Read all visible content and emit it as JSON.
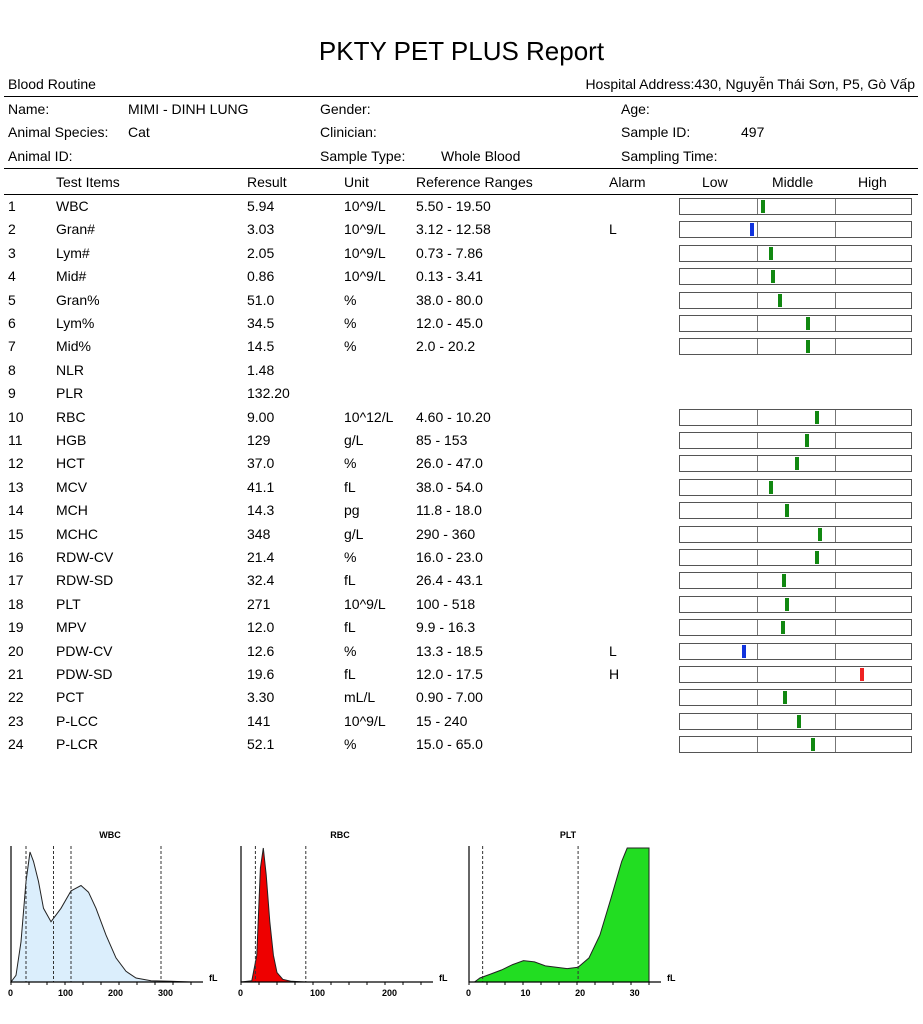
{
  "report": {
    "title": "PKTY PET PLUS Report",
    "section": "Blood Routine",
    "hospital": "Hospital Address:430, Nguyễn Thái Sơn, P5, Gò Vấp"
  },
  "patient": {
    "name_label": "Name:",
    "name_value": "MIMI - DINH LUNG",
    "gender_label": "Gender:",
    "gender_value": "",
    "age_label": "Age:",
    "age_value": "",
    "species_label": "Animal Species:",
    "species_value": "Cat",
    "clinician_label": "Clinician:",
    "clinician_value": "",
    "sample_id_label": "Sample ID:",
    "sample_id_value": "497",
    "animal_id_label": "Animal ID:",
    "animal_id_value": "",
    "sample_type_label": "Sample Type:",
    "sample_type_value": "Whole Blood",
    "sampling_time_label": "Sampling Time:",
    "sampling_time_value": ""
  },
  "table": {
    "headers": {
      "test_items": "Test Items",
      "result": "Result",
      "unit": "Unit",
      "reference": "Reference Ranges",
      "alarm": "Alarm",
      "low": "Low",
      "middle": "Middle",
      "high": "High"
    },
    "rows": [
      {
        "no": "1",
        "item": "WBC",
        "result": "5.94",
        "unit": "10^9/L",
        "ref": "5.50 - 19.50",
        "alarm": "",
        "level": 0.355,
        "color": "#118811"
      },
      {
        "no": "2",
        "item": "Gran#",
        "result": "3.03",
        "unit": "10^9/L",
        "ref": "3.12 - 12.58",
        "alarm": "L",
        "level": 0.31,
        "color": "#1133dd"
      },
      {
        "no": "3",
        "item": "Lym#",
        "result": "2.05",
        "unit": "10^9/L",
        "ref": "0.73 - 7.86",
        "alarm": "",
        "level": 0.39,
        "color": "#118811"
      },
      {
        "no": "4",
        "item": "Mid#",
        "result": "0.86",
        "unit": "10^9/L",
        "ref": "0.13 - 3.41",
        "alarm": "",
        "level": 0.4,
        "color": "#118811"
      },
      {
        "no": "5",
        "item": "Gran%",
        "result": "51.0",
        "unit": "%",
        "ref": "38.0 - 80.0",
        "alarm": "",
        "level": 0.43,
        "color": "#118811"
      },
      {
        "no": "6",
        "item": "Lym%",
        "result": "34.5",
        "unit": "%",
        "ref": "12.0 - 45.0",
        "alarm": "",
        "level": 0.55,
        "color": "#118811"
      },
      {
        "no": "7",
        "item": "Mid%",
        "result": "14.5",
        "unit": "%",
        "ref": "2.0 - 20.2",
        "alarm": "",
        "level": 0.55,
        "color": "#118811"
      },
      {
        "no": "8",
        "item": "NLR",
        "result": "1.48",
        "unit": "",
        "ref": "",
        "alarm": "",
        "level": null,
        "color": ""
      },
      {
        "no": "9",
        "item": "PLR",
        "result": "132.20",
        "unit": "",
        "ref": "",
        "alarm": "",
        "level": null,
        "color": ""
      },
      {
        "no": "10",
        "item": "RBC",
        "result": "9.00",
        "unit": "10^12/L",
        "ref": "4.60 - 10.20",
        "alarm": "",
        "level": 0.59,
        "color": "#118811"
      },
      {
        "no": "11",
        "item": "HGB",
        "result": "129",
        "unit": "g/L",
        "ref": "85 - 153",
        "alarm": "",
        "level": 0.545,
        "color": "#118811"
      },
      {
        "no": "12",
        "item": "HCT",
        "result": "37.0",
        "unit": "%",
        "ref": "26.0 - 47.0",
        "alarm": "",
        "level": 0.5,
        "color": "#118811"
      },
      {
        "no": "13",
        "item": "MCV",
        "result": "41.1",
        "unit": "fL",
        "ref": "38.0 - 54.0",
        "alarm": "",
        "level": 0.39,
        "color": "#118811"
      },
      {
        "no": "14",
        "item": "MCH",
        "result": "14.3",
        "unit": "pg",
        "ref": "11.8 - 18.0",
        "alarm": "",
        "level": 0.46,
        "color": "#118811"
      },
      {
        "no": "15",
        "item": "MCHC",
        "result": "348",
        "unit": "g/L",
        "ref": "290 - 360",
        "alarm": "",
        "level": 0.6,
        "color": "#118811"
      },
      {
        "no": "16",
        "item": "RDW-CV",
        "result": "21.4",
        "unit": "%",
        "ref": "16.0 - 23.0",
        "alarm": "",
        "level": 0.59,
        "color": "#118811"
      },
      {
        "no": "17",
        "item": "RDW-SD",
        "result": "32.4",
        "unit": "fL",
        "ref": "26.4 - 43.1",
        "alarm": "",
        "level": 0.445,
        "color": "#118811"
      },
      {
        "no": "18",
        "item": "PLT",
        "result": "271",
        "unit": "10^9/L",
        "ref": "100 - 518",
        "alarm": "",
        "level": 0.46,
        "color": "#118811"
      },
      {
        "no": "19",
        "item": "MPV",
        "result": "12.0",
        "unit": "fL",
        "ref": "9.9 - 16.3",
        "alarm": "",
        "level": 0.44,
        "color": "#118811"
      },
      {
        "no": "20",
        "item": "PDW-CV",
        "result": "12.6",
        "unit": "%",
        "ref": "13.3 - 18.5",
        "alarm": "L",
        "level": 0.275,
        "color": "#1133dd"
      },
      {
        "no": "21",
        "item": "PDW-SD",
        "result": "19.6",
        "unit": "fL",
        "ref": "12.0 - 17.5",
        "alarm": "H",
        "level": 0.78,
        "color": "#ee2222"
      },
      {
        "no": "22",
        "item": "PCT",
        "result": "3.30",
        "unit": "mL/L",
        "ref": "0.90 - 7.00",
        "alarm": "",
        "level": 0.45,
        "color": "#118811"
      },
      {
        "no": "23",
        "item": "P-LCC",
        "result": "141",
        "unit": "10^9/L",
        "ref": "15 - 240",
        "alarm": "",
        "level": 0.51,
        "color": "#118811"
      },
      {
        "no": "24",
        "item": "P-LCR",
        "result": "52.1",
        "unit": "%",
        "ref": "15.0 - 65.0",
        "alarm": "",
        "level": 0.57,
        "color": "#118811"
      }
    ]
  },
  "histograms": [
    {
      "name": "WBC",
      "unit": "fL",
      "ticks": [
        "0",
        "100",
        "200",
        "300"
      ],
      "tick_values": [
        0,
        100,
        200,
        300
      ],
      "xmax": 360,
      "fill": "#dbeefc",
      "stroke": "#222",
      "markers": [
        30,
        85,
        120,
        300
      ],
      "curve": [
        [
          0,
          0
        ],
        [
          10,
          0.05
        ],
        [
          20,
          0.3
        ],
        [
          30,
          0.75
        ],
        [
          38,
          0.97
        ],
        [
          45,
          0.9
        ],
        [
          55,
          0.75
        ],
        [
          65,
          0.55
        ],
        [
          80,
          0.45
        ],
        [
          100,
          0.55
        ],
        [
          120,
          0.68
        ],
        [
          140,
          0.72
        ],
        [
          155,
          0.67
        ],
        [
          170,
          0.55
        ],
        [
          190,
          0.35
        ],
        [
          210,
          0.18
        ],
        [
          230,
          0.08
        ],
        [
          250,
          0.03
        ],
        [
          280,
          0.01
        ],
        [
          320,
          0.005
        ],
        [
          360,
          0
        ]
      ]
    },
    {
      "name": "RBC",
      "unit": "fL",
      "ticks": [
        "0",
        "100",
        "200"
      ],
      "tick_values": [
        0,
        100,
        200
      ],
      "xmax": 250,
      "fill": "#ee0000",
      "stroke": "#222",
      "markers": [
        20,
        90
      ],
      "curve": [
        [
          0,
          0
        ],
        [
          15,
          0.01
        ],
        [
          22,
          0.2
        ],
        [
          27,
          0.85
        ],
        [
          31,
          1.0
        ],
        [
          35,
          0.8
        ],
        [
          40,
          0.45
        ],
        [
          45,
          0.2
        ],
        [
          50,
          0.07
        ],
        [
          58,
          0.02
        ],
        [
          70,
          0.005
        ],
        [
          90,
          0
        ],
        [
          250,
          0
        ]
      ]
    },
    {
      "name": "PLT",
      "unit": "fL",
      "ticks": [
        "0",
        "10",
        "20",
        "30"
      ],
      "tick_values": [
        0,
        10,
        20,
        30
      ],
      "xmax": 33,
      "fill": "#22dd22",
      "stroke": "#222",
      "markers": [
        2.5,
        20
      ],
      "curve": [
        [
          1,
          0
        ],
        [
          2,
          0.03
        ],
        [
          4,
          0.06
        ],
        [
          6,
          0.09
        ],
        [
          8,
          0.13
        ],
        [
          10,
          0.16
        ],
        [
          12,
          0.15
        ],
        [
          14,
          0.12
        ],
        [
          16,
          0.11
        ],
        [
          18,
          0.1
        ],
        [
          20,
          0.11
        ],
        [
          22,
          0.18
        ],
        [
          24,
          0.35
        ],
        [
          26,
          0.62
        ],
        [
          28,
          0.9
        ],
        [
          29,
          1.0
        ],
        [
          33,
          1.0
        ]
      ]
    }
  ]
}
